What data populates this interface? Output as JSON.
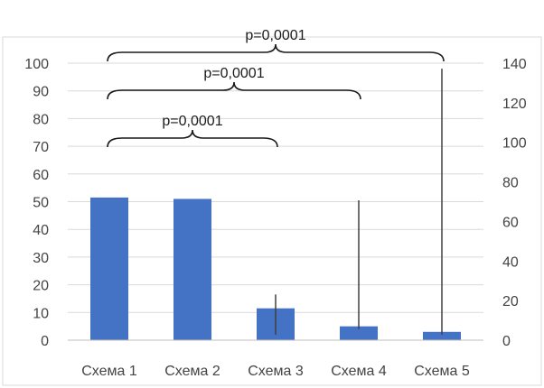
{
  "chart_data": {
    "type": "bar",
    "categories": [
      "Схема 1",
      "Схема 2",
      "Схема 3",
      "Схема 4",
      "Схема 5"
    ],
    "values": [
      51.5,
      51,
      11.5,
      5,
      3
    ],
    "error_bars": [
      null,
      null,
      {
        "low": 2,
        "high": 16.5
      },
      {
        "low": 4,
        "high": 50.5
      },
      {
        "low": 2,
        "high": 98
      }
    ],
    "ylim": [
      0,
      100
    ],
    "y_ticks": [
      0,
      10,
      20,
      30,
      40,
      50,
      60,
      70,
      80,
      90,
      100
    ],
    "y2lim": [
      0,
      140
    ],
    "y2_ticks": [
      0,
      20,
      40,
      60,
      80,
      100,
      120,
      140
    ],
    "grid": true,
    "bar_color": "#4472C4",
    "annotations": [
      {
        "text": "p=0,0001",
        "from": "Схема 1",
        "to": "Схема 3",
        "level": 1
      },
      {
        "text": "p=0,0001",
        "from": "Схема 1",
        "to": "Схема 4",
        "level": 2
      },
      {
        "text": "p=0,0001",
        "from": "Схема 1",
        "to": "Схема 5",
        "level": 3
      }
    ]
  }
}
